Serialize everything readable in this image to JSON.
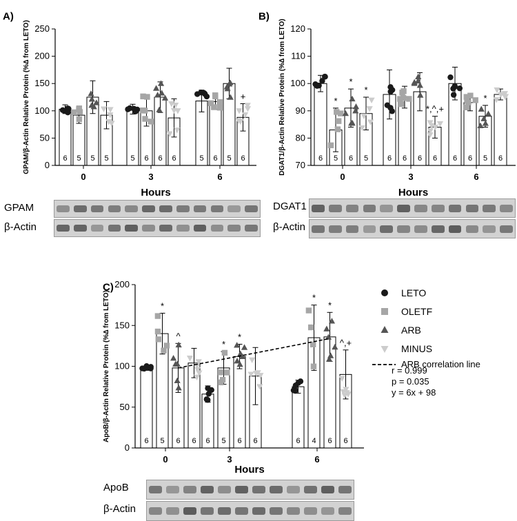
{
  "chart_data": [
    {
      "panel": "A)",
      "type": "bar",
      "ylabel": "GPAM/β-Actin Relative Protein (%∆ from LETO)",
      "xlabel": "Hours",
      "ylim": [
        0,
        250
      ],
      "yticks": [
        0,
        50,
        100,
        150,
        200,
        250
      ],
      "categories": [
        "0",
        "3",
        "6"
      ],
      "series": [
        {
          "name": "LETO",
          "values": [
            103,
            103,
            118
          ],
          "errors": [
            8,
            9,
            20
          ],
          "n": [
            6,
            5,
            5
          ]
        },
        {
          "name": "OLETF",
          "values": [
            92,
            100,
            117
          ],
          "errors": [
            15,
            28,
            14
          ],
          "n": [
            5,
            6,
            6
          ]
        },
        {
          "name": "ARB",
          "values": [
            125,
            125,
            150
          ],
          "errors": [
            30,
            28,
            28
          ],
          "n": [
            5,
            6,
            5
          ]
        },
        {
          "name": "MINUS",
          "values": [
            92,
            87,
            88
          ],
          "errors": [
            25,
            35,
            25
          ],
          "n": [
            5,
            6,
            6
          ]
        }
      ],
      "annotations": [
        {
          "category": "6",
          "series": "MINUS",
          "text": "+"
        }
      ],
      "blots": [
        {
          "label": "GPAM"
        },
        {
          "label": "β-Actin"
        }
      ]
    },
    {
      "panel": "B)",
      "type": "bar",
      "ylabel": "DGAT1/β-Actin Relative Protein (%∆ from LETO)",
      "xlabel": "Hours",
      "ylim": [
        70,
        120
      ],
      "yticks": [
        70,
        80,
        90,
        100,
        110,
        120
      ],
      "categories": [
        "0",
        "3",
        "6"
      ],
      "series": [
        {
          "name": "LETO",
          "values": [
            100,
            96,
            100
          ],
          "errors": [
            3,
            9,
            6
          ],
          "n": [
            6,
            6,
            6
          ]
        },
        {
          "name": "OLETF",
          "values": [
            83,
            95,
            93
          ],
          "errors": [
            8,
            4,
            3
          ],
          "n": [
            5,
            6,
            6
          ]
        },
        {
          "name": "ARB",
          "values": [
            91,
            97,
            88
          ],
          "errors": [
            7,
            7,
            4
          ],
          "n": [
            6,
            6,
            5
          ]
        },
        {
          "name": "MINUS",
          "values": [
            89,
            84,
            96
          ],
          "errors": [
            6,
            4,
            2
          ],
          "n": [
            5,
            6,
            6
          ]
        }
      ],
      "annotations": [
        {
          "category": "0",
          "series": "OLETF",
          "text": "*"
        },
        {
          "category": "0",
          "series": "ARB",
          "text": "*"
        },
        {
          "category": "0",
          "series": "MINUS",
          "text": "*"
        },
        {
          "category": "3",
          "series": "MINUS",
          "text": "*,^,+"
        },
        {
          "category": "6",
          "series": "ARB",
          "text": "*"
        }
      ],
      "blots": [
        {
          "label": "DGAT1"
        },
        {
          "label": "β-Actin"
        }
      ]
    },
    {
      "panel": "C)",
      "type": "bar",
      "ylabel": "ApoB/β-Actin Relative Protein (%∆ from LETO)",
      "xlabel": "Hours",
      "ylim": [
        0,
        200
      ],
      "yticks": [
        0,
        50,
        100,
        150,
        200
      ],
      "categories": [
        "0",
        "3",
        "6"
      ],
      "series": [
        {
          "name": "LETO",
          "values": [
            98,
            66,
            75
          ],
          "errors": [
            3,
            10,
            8
          ],
          "n": [
            6,
            6,
            6
          ]
        },
        {
          "name": "OLETF",
          "values": [
            140,
            98,
            135
          ],
          "errors": [
            25,
            20,
            40
          ],
          "n": [
            5,
            5,
            4
          ]
        },
        {
          "name": "ARB",
          "values": [
            98,
            112,
            136
          ],
          "errors": [
            30,
            15,
            30
          ],
          "n": [
            6,
            6,
            6
          ]
        },
        {
          "name": "MINUS",
          "values": [
            104,
            88,
            90
          ],
          "errors": [
            18,
            35,
            30
          ],
          "n": [
            6,
            6,
            6
          ]
        }
      ],
      "annotations": [
        {
          "category": "0",
          "series": "OLETF",
          "text": "*"
        },
        {
          "category": "0",
          "series": "ARB",
          "text": "^"
        },
        {
          "category": "3",
          "series": "OLETF",
          "text": "*"
        },
        {
          "category": "3",
          "series": "ARB",
          "text": "*"
        },
        {
          "category": "6",
          "series": "OLETF",
          "text": "*"
        },
        {
          "category": "6",
          "series": "ARB",
          "text": "*"
        },
        {
          "category": "6",
          "series": "MINUS",
          "text": "^,+"
        }
      ],
      "trendline": {
        "label": "ARB correlation line",
        "x": [
          0,
          6
        ],
        "y": [
          98,
          134
        ]
      },
      "stats": [
        "r = 0.999",
        "p = 0.035",
        "y = 6x + 98"
      ],
      "blots": [
        {
          "label": "ApoB"
        },
        {
          "label": "β-Actin"
        }
      ]
    }
  ],
  "legend": [
    {
      "name": "LETO",
      "marker": "circle",
      "color": "#1a1a1a"
    },
    {
      "name": "OLETF",
      "marker": "square",
      "color": "#a6a6a6"
    },
    {
      "name": "ARB",
      "marker": "triangle-up",
      "color": "#555555"
    },
    {
      "name": "MINUS",
      "marker": "triangle-down",
      "color": "#cccccc"
    }
  ],
  "legend_line_label": "ARB correlation line"
}
